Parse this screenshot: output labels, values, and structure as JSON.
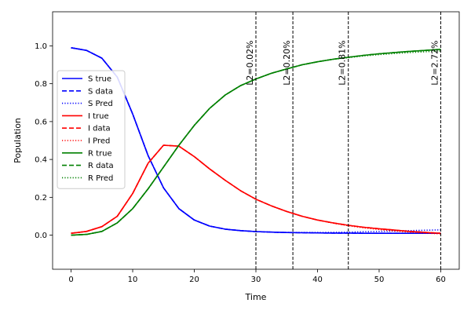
{
  "chart_data": {
    "type": "line",
    "title": "",
    "xlabel": "Time",
    "ylabel": "Population",
    "xlim": [
      -3,
      63
    ],
    "ylim": [
      -0.18,
      1.18
    ],
    "xticks": [
      0,
      10,
      20,
      30,
      40,
      50,
      60
    ],
    "yticks": [
      0.0,
      0.2,
      0.4,
      0.6,
      0.8,
      1.0
    ],
    "grid": false,
    "legend_position": "center-left",
    "x": [
      0,
      2.5,
      5,
      7.5,
      10,
      12.5,
      15,
      17.5,
      20,
      22.5,
      25,
      27.5,
      30,
      32.5,
      35,
      37.5,
      40,
      42.5,
      45,
      47.5,
      50,
      52.5,
      55,
      57.5,
      60
    ],
    "series": [
      {
        "name": "S true",
        "color": "#0000ff",
        "style": "solid",
        "values": [
          0.99,
          0.976,
          0.935,
          0.835,
          0.64,
          0.42,
          0.25,
          0.14,
          0.08,
          0.048,
          0.032,
          0.024,
          0.019,
          0.016,
          0.014,
          0.013,
          0.012,
          0.011,
          0.011,
          0.01,
          0.01,
          0.01,
          0.01,
          0.01,
          0.01
        ]
      },
      {
        "name": "S data",
        "color": "#0000ff",
        "style": "dashed",
        "values": [
          0.99,
          0.976,
          0.935,
          0.835,
          0.64,
          0.42,
          0.25,
          0.14,
          0.08,
          0.048,
          0.032,
          0.024,
          0.019,
          0.016,
          0.014,
          0.013,
          0.012,
          0.011,
          0.011,
          0.01,
          0.01,
          0.01,
          0.01,
          0.01,
          0.01
        ]
      },
      {
        "name": "S Pred",
        "color": "#0000ff",
        "style": "dotted",
        "values": [
          0.99,
          0.976,
          0.935,
          0.835,
          0.64,
          0.42,
          0.25,
          0.14,
          0.08,
          0.048,
          0.032,
          0.024,
          0.019,
          0.016,
          0.014,
          0.014,
          0.014,
          0.015,
          0.016,
          0.018,
          0.02,
          0.022,
          0.024,
          0.026,
          0.028
        ]
      },
      {
        "name": "I true",
        "color": "#ff0000",
        "style": "solid",
        "values": [
          0.01,
          0.02,
          0.045,
          0.1,
          0.22,
          0.38,
          0.475,
          0.47,
          0.415,
          0.35,
          0.29,
          0.235,
          0.19,
          0.155,
          0.125,
          0.1,
          0.08,
          0.065,
          0.052,
          0.042,
          0.034,
          0.027,
          0.02,
          0.015,
          0.01
        ]
      },
      {
        "name": "I data",
        "color": "#ff0000",
        "style": "dashed",
        "values": [
          0.01,
          0.02,
          0.045,
          0.1,
          0.22,
          0.38,
          0.475,
          0.47,
          0.415,
          0.35,
          0.29,
          0.235,
          0.19,
          0.155,
          0.125,
          0.1,
          0.08,
          0.065,
          0.052,
          0.042,
          0.034,
          0.027,
          0.02,
          0.015,
          0.01
        ]
      },
      {
        "name": "I Pred",
        "color": "#ff0000",
        "style": "dotted",
        "values": [
          0.01,
          0.02,
          0.045,
          0.1,
          0.22,
          0.38,
          0.475,
          0.47,
          0.415,
          0.35,
          0.29,
          0.235,
          0.19,
          0.155,
          0.125,
          0.1,
          0.08,
          0.064,
          0.05,
          0.039,
          0.03,
          0.022,
          0.016,
          0.011,
          0.007
        ]
      },
      {
        "name": "R true",
        "color": "#008000",
        "style": "solid",
        "values": [
          0.0,
          0.004,
          0.02,
          0.065,
          0.14,
          0.245,
          0.36,
          0.475,
          0.58,
          0.67,
          0.74,
          0.79,
          0.825,
          0.855,
          0.878,
          0.9,
          0.916,
          0.929,
          0.94,
          0.95,
          0.958,
          0.965,
          0.971,
          0.976,
          0.982
        ]
      },
      {
        "name": "R data",
        "color": "#008000",
        "style": "dashed",
        "values": [
          0.0,
          0.004,
          0.02,
          0.065,
          0.14,
          0.245,
          0.36,
          0.475,
          0.58,
          0.67,
          0.74,
          0.79,
          0.825,
          0.855,
          0.878,
          0.9,
          0.916,
          0.929,
          0.94,
          0.95,
          0.958,
          0.965,
          0.971,
          0.976,
          0.982
        ]
      },
      {
        "name": "R Pred",
        "color": "#008000",
        "style": "dotted",
        "values": [
          0.0,
          0.004,
          0.02,
          0.065,
          0.14,
          0.245,
          0.36,
          0.475,
          0.58,
          0.67,
          0.74,
          0.79,
          0.825,
          0.855,
          0.878,
          0.9,
          0.916,
          0.929,
          0.938,
          0.947,
          0.954,
          0.96,
          0.965,
          0.969,
          0.973
        ]
      }
    ],
    "vlines": [
      {
        "x": 30,
        "label": "L2=0.02%"
      },
      {
        "x": 36,
        "label": "L2=0.20%"
      },
      {
        "x": 45,
        "label": "L2=0.81%"
      },
      {
        "x": 60,
        "label": "L2=2.72%"
      }
    ],
    "vline_label_y": 0.91
  }
}
